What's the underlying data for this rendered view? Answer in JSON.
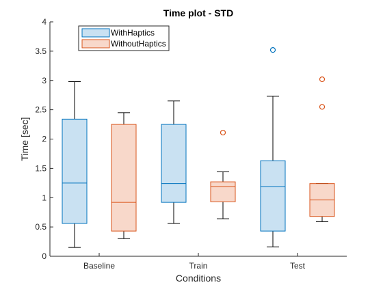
{
  "chart_data": {
    "type": "boxplot",
    "title": "Time plot - STD",
    "xlabel": "Conditions",
    "ylabel": "Time [sec]",
    "ylim": [
      0,
      4
    ],
    "yticks": [
      "0",
      "0.5",
      "1",
      "1.5",
      "2",
      "2.5",
      "3",
      "3.5",
      "4"
    ],
    "ytick_values": [
      0,
      0.5,
      1,
      1.5,
      2,
      2.5,
      3,
      3.5,
      4
    ],
    "categories": [
      "Baseline",
      "Train",
      "Test"
    ],
    "legend_position": "top-left",
    "series": [
      {
        "name": "WithHaptics",
        "edge_color": "#0072BD",
        "fill_color": "#C9E1F2",
        "boxes": [
          {
            "min": 0.15,
            "q1": 0.56,
            "median": 1.25,
            "q3": 2.34,
            "max": 2.98,
            "outliers": []
          },
          {
            "min": 0.56,
            "q1": 0.92,
            "median": 1.24,
            "q3": 2.25,
            "max": 2.65,
            "outliers": []
          },
          {
            "min": 0.16,
            "q1": 0.43,
            "median": 1.19,
            "q3": 1.63,
            "max": 2.73,
            "outliers": [
              3.52
            ]
          }
        ]
      },
      {
        "name": "WithoutHaptics",
        "edge_color": "#D95319",
        "fill_color": "#F8D8CA",
        "boxes": [
          {
            "min": 0.3,
            "q1": 0.43,
            "median": 0.92,
            "q3": 2.25,
            "max": 2.45,
            "outliers": []
          },
          {
            "min": 0.64,
            "q1": 0.93,
            "median": 1.19,
            "q3": 1.27,
            "max": 1.44,
            "outliers": [
              2.11
            ]
          },
          {
            "min": 0.59,
            "q1": 0.68,
            "median": 0.96,
            "q3": 1.24,
            "max": 1.24,
            "outliers": [
              2.55,
              3.02
            ]
          }
        ]
      }
    ]
  }
}
